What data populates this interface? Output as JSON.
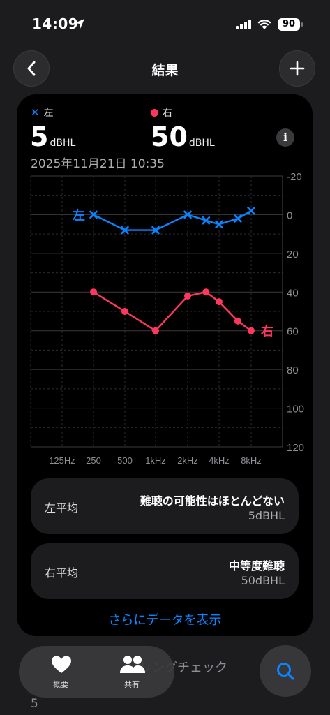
{
  "status": {
    "time": "14:09",
    "battery": "90"
  },
  "nav": {
    "title": "結果"
  },
  "legend": {
    "left_label": "左",
    "right_label": "右"
  },
  "values": {
    "left_value": "5",
    "left_unit": "dBHL",
    "right_value": "50",
    "right_unit": "dBHL"
  },
  "date": "2025年11月21日 10:35",
  "colors": {
    "left": "#0a84ff",
    "right": "#ff375f"
  },
  "chart_data": {
    "type": "line",
    "title": "",
    "categories": [
      "125Hz",
      "250",
      "500",
      "1kHz",
      "2kHz",
      "4kHz",
      "8kHz"
    ],
    "series": [
      {
        "name": "左",
        "marker": "x",
        "x": [
          250,
          500,
          1000,
          2000,
          3000,
          4000,
          6000,
          8000
        ],
        "values": [
          0,
          8,
          8,
          0,
          3,
          5,
          2,
          -2
        ]
      },
      {
        "name": "右",
        "marker": "circle",
        "x": [
          250,
          500,
          1000,
          2000,
          3000,
          4000,
          6000,
          8000
        ],
        "values": [
          40,
          50,
          60,
          42,
          40,
          45,
          55,
          60
        ]
      }
    ],
    "yticks": [
      "-20",
      "0",
      "20",
      "40",
      "60",
      "80",
      "100",
      "120"
    ],
    "ylim": [
      -20,
      120
    ],
    "y_inverted": true,
    "grid": true
  },
  "averages": [
    {
      "label": "左平均",
      "title": "難聴の可能性はほとんどない",
      "value": "5dBHL"
    },
    {
      "label": "右平均",
      "title": "中等度難聴",
      "value": "50dBHL"
    }
  ],
  "more_link": "さらにデータを表示",
  "peek": {
    "text": "リングチェック",
    "value": "5"
  },
  "tabs": [
    {
      "label": "概要",
      "icon": "heart-icon"
    },
    {
      "label": "共有",
      "icon": "people-icon"
    }
  ],
  "search_icon": "search-icon"
}
